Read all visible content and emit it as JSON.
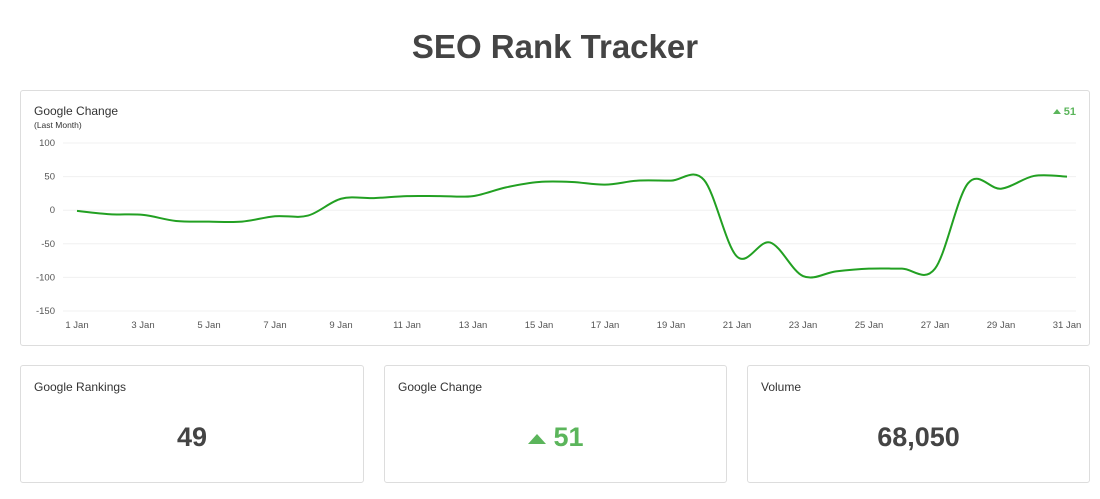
{
  "header": {
    "title": "SEO Rank Tracker"
  },
  "chart_data": {
    "type": "line",
    "title": "Google Change",
    "subtitle": "(Last Month)",
    "badge": "51",
    "categories": [
      "1 Jan",
      null,
      "3 Jan",
      null,
      "5 Jan",
      null,
      "7 Jan",
      null,
      "9 Jan",
      null,
      "11 Jan",
      null,
      "13 Jan",
      null,
      "15 Jan",
      null,
      "17 Jan",
      null,
      "19 Jan",
      null,
      "21 Jan",
      null,
      "23 Jan",
      null,
      "25 Jan",
      null,
      "27 Jan",
      null,
      "29 Jan",
      null,
      "31 Jan"
    ],
    "series": [
      {
        "color": "#22a022",
        "values": [
          -1,
          -6,
          -7,
          -16,
          -17,
          -17,
          -9,
          -8,
          17,
          18,
          21,
          21,
          21,
          34,
          42,
          42,
          38,
          44,
          44,
          45,
          -69,
          -48,
          -98,
          -91,
          -87,
          -87,
          -87,
          40,
          32,
          51,
          50
        ]
      }
    ],
    "ylim": [
      -150,
      100
    ],
    "yticks": [
      -150,
      -100,
      -50,
      0,
      50,
      100
    ],
    "grid": true
  },
  "cards": [
    {
      "title": "Google Rankings",
      "value": "49"
    },
    {
      "title": "Google Change",
      "value": "51"
    },
    {
      "title": "Volume",
      "value": "68,050"
    }
  ]
}
